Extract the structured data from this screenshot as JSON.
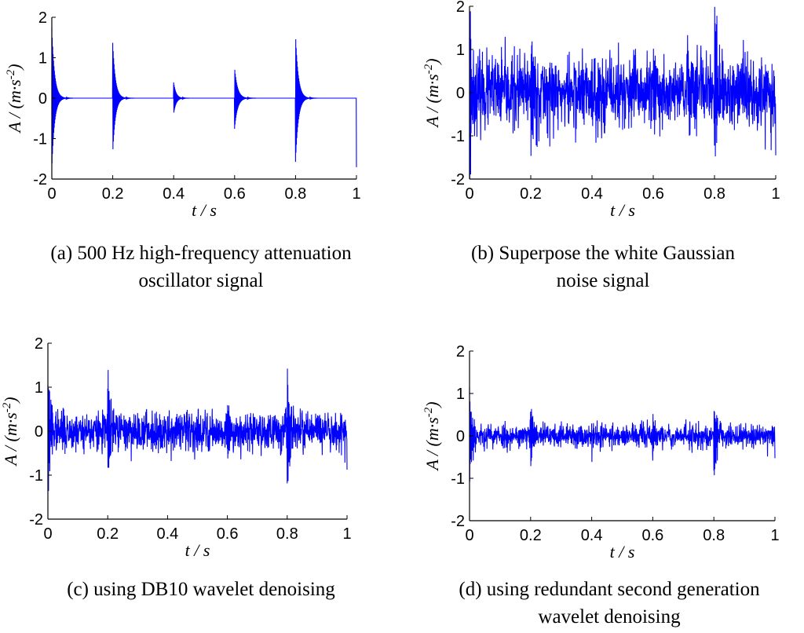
{
  "captions": {
    "a_line1": "(a) 500 Hz high-frequency attenuation",
    "a_line2": "oscillator signal",
    "b_line1": "(b) Superpose the white Gaussian",
    "b_line2": "noise signal",
    "c_line1": "(c) using DB10 wavelet denoising",
    "d_line1": "(d) using redundant second generation",
    "d_line2": "wavelet denoising"
  },
  "chart_data": [
    {
      "id": "a",
      "type": "line",
      "title": "",
      "xlabel": "t / s",
      "ylabel": "A / (m·s^-2)",
      "xlim": [
        0,
        1
      ],
      "ylim": [
        -2,
        2
      ],
      "xticks": [
        "0",
        "0.2",
        "0.4",
        "0.6",
        "0.8",
        "1"
      ],
      "yticks": [
        "2",
        "1",
        "0",
        "-1",
        "-2"
      ],
      "color": "#0000ff",
      "signal": "decaying bursts of a 500 Hz oscillation at t = 0, 0.2, 0.4, 0.6, 0.8, 1",
      "peak_times": [
        0,
        0.2,
        0.4,
        0.6,
        0.8,
        1.0
      ],
      "peak_amplitude": 1.75,
      "noise_std": 0
    },
    {
      "id": "b",
      "type": "line",
      "title": "",
      "xlabel": "t / s",
      "ylabel": "A / (m·s^-2)",
      "xlim": [
        0,
        1
      ],
      "ylim": [
        -2,
        2
      ],
      "xticks": [
        "0",
        "0.2",
        "0.4",
        "0.6",
        "0.8",
        "1"
      ],
      "yticks": [
        "2",
        "1",
        "0",
        "-1",
        "-2"
      ],
      "color": "#0000ff",
      "signal": "signal (a) plus white Gaussian noise",
      "peak_times": [
        0,
        0.2,
        0.4,
        0.6,
        0.8,
        1.0
      ],
      "peak_amplitude": 1.75,
      "noise_std": 0.42
    },
    {
      "id": "c",
      "type": "line",
      "title": "",
      "xlabel": "t / s",
      "ylabel": "A / (m·s^-2)",
      "xlim": [
        0,
        1
      ],
      "ylim": [
        -2,
        2
      ],
      "xticks": [
        "0",
        "0.2",
        "0.4",
        "0.6",
        "0.8",
        "1"
      ],
      "yticks": [
        "2",
        "1",
        "0",
        "-1",
        "-2"
      ],
      "color": "#0000ff",
      "signal": "DB10 wavelet denoised signal",
      "peak_times": [
        0,
        0.2,
        0.4,
        0.6,
        0.8,
        1.0
      ],
      "peak_amplitude": 1.3,
      "noise_std": 0.22
    },
    {
      "id": "d",
      "type": "line",
      "title": "",
      "xlabel": "t / s",
      "ylabel": "A / (m·s^-2)",
      "xlim": [
        0,
        1
      ],
      "ylim": [
        -2,
        2
      ],
      "xticks": [
        "0",
        "0.2",
        "0.4",
        "0.6",
        "0.8",
        "1"
      ],
      "yticks": [
        "2",
        "1",
        "0",
        "-1",
        "-2"
      ],
      "color": "#0000ff",
      "signal": "redundant second generation wavelet denoised signal",
      "peak_times": [
        0,
        0.2,
        0.4,
        0.6,
        0.8,
        1.0
      ],
      "peak_amplitude": 0.95,
      "noise_std": 0.14
    }
  ]
}
